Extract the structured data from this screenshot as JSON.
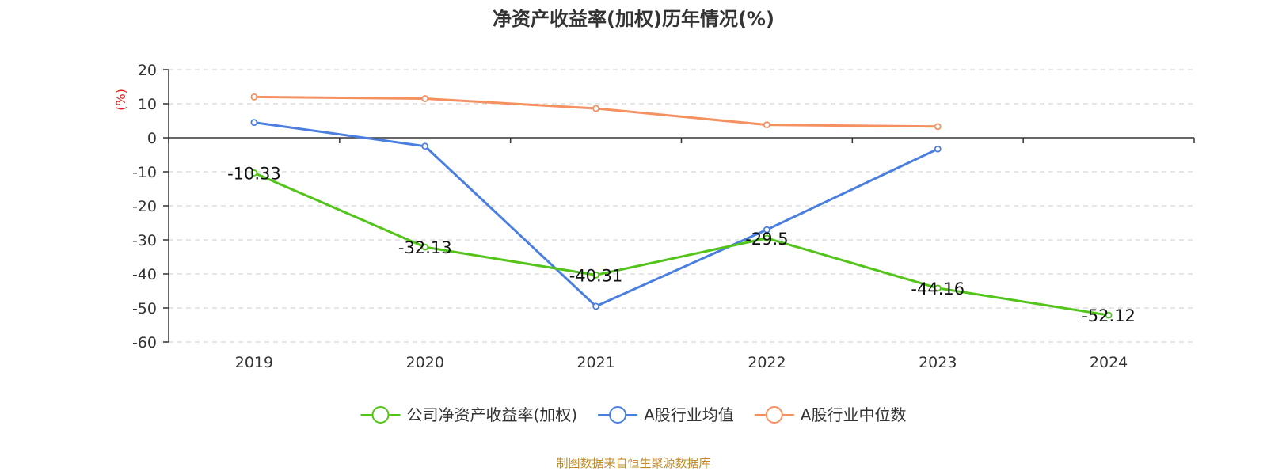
{
  "chart_data": {
    "type": "line",
    "title": "净资产收益率(加权)历年情况(%)",
    "y_unit": "(%)",
    "x": [
      "2019",
      "2020",
      "2021",
      "2022",
      "2023",
      "2024"
    ],
    "ylim": [
      -60,
      20
    ],
    "y_ticks": [
      20,
      10,
      0,
      -10,
      -20,
      -30,
      -40,
      -50,
      -60
    ],
    "grid": true,
    "legend_position": "bottom",
    "series": [
      {
        "name": "公司净资产收益率(加权)",
        "color": "#52c41a",
        "values": [
          -10.33,
          -32.13,
          -40.31,
          -29.5,
          -44.16,
          -52.12
        ],
        "labels": [
          "-10.33",
          "-32.13",
          "-40.31",
          "-29.5",
          "-44.16",
          "-52.12"
        ]
      },
      {
        "name": "A股行业均值",
        "color": "#4a7fe0",
        "values": [
          4.5,
          -2.5,
          -49.5,
          -27,
          -3.3,
          null
        ]
      },
      {
        "name": "A股行业中位数",
        "color": "#f59060",
        "values": [
          12,
          11.5,
          8.6,
          3.8,
          3.3,
          null
        ]
      }
    ],
    "source": "制图数据来自恒生聚源数据库",
    "unit_color": "#e02020",
    "source_color": "#c08a2a"
  }
}
